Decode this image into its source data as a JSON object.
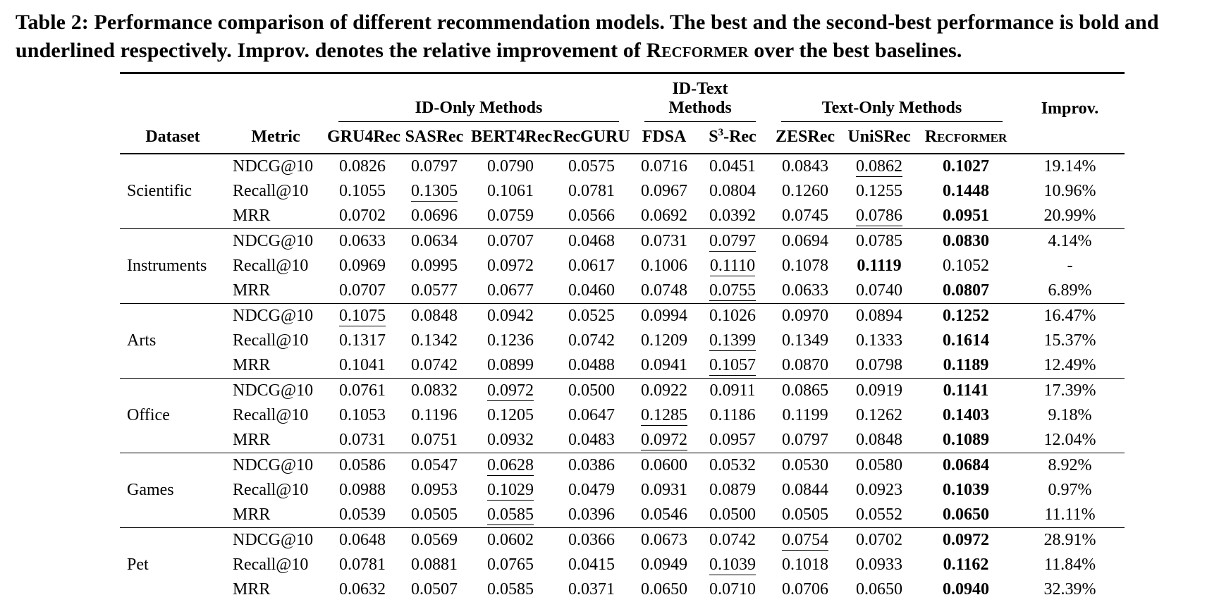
{
  "colors": {
    "text": "#000000",
    "background": "#ffffff",
    "rule": "#000000"
  },
  "caption": {
    "prefix": "Table 2: Performance comparison of different recommendation models. The best and the second-best performance is bold and underlined respectively. Improv. denotes the relative improvement of ",
    "recformer": "Recformer",
    "suffix": " over the best baselines."
  },
  "table": {
    "group_headers": [
      "ID-Only Methods",
      "ID-Text Methods",
      "Text-Only Methods"
    ],
    "improv_header": "Improv.",
    "dataset_header": "Dataset",
    "metric_header": "Metric",
    "models": [
      "GRU4Rec",
      "SASRec",
      "BERT4Rec",
      "RecGURU",
      "FDSA",
      "ZESRec",
      "UniSRec",
      "Recformer"
    ],
    "s3rec": {
      "pre": "S",
      "sup": "3",
      "post": "-Rec"
    },
    "body": [
      {
        "dataset": "Scientific",
        "rows": [
          {
            "metric": "NDCG@10",
            "cells": [
              "0.0826",
              "0.0797",
              "0.0790",
              "0.0575",
              "0.0716",
              "0.0451",
              "0.0843",
              {
                "v": "0.0862",
                "s": "ul"
              },
              {
                "v": "0.1027",
                "s": "b"
              },
              "19.14%"
            ]
          },
          {
            "metric": "Recall@10",
            "cells": [
              "0.1055",
              {
                "v": "0.1305",
                "s": "ul"
              },
              "0.1061",
              "0.0781",
              "0.0967",
              "0.0804",
              "0.1260",
              "0.1255",
              {
                "v": "0.1448",
                "s": "b"
              },
              "10.96%"
            ]
          },
          {
            "metric": "MRR",
            "cells": [
              "0.0702",
              "0.0696",
              "0.0759",
              "0.0566",
              "0.0692",
              "0.0392",
              "0.0745",
              {
                "v": "0.0786",
                "s": "ul"
              },
              {
                "v": "0.0951",
                "s": "b"
              },
              "20.99%"
            ]
          }
        ]
      },
      {
        "dataset": "Instruments",
        "rows": [
          {
            "metric": "NDCG@10",
            "cells": [
              "0.0633",
              "0.0634",
              "0.0707",
              "0.0468",
              "0.0731",
              {
                "v": "0.0797",
                "s": "ul"
              },
              "0.0694",
              "0.0785",
              {
                "v": "0.0830",
                "s": "b"
              },
              "4.14%"
            ]
          },
          {
            "metric": "Recall@10",
            "cells": [
              "0.0969",
              "0.0995",
              "0.0972",
              "0.0617",
              "0.1006",
              {
                "v": "0.1110",
                "s": "ul"
              },
              "0.1078",
              {
                "v": "0.1119",
                "s": "b"
              },
              "0.1052",
              "-"
            ]
          },
          {
            "metric": "MRR",
            "cells": [
              "0.0707",
              "0.0577",
              "0.0677",
              "0.0460",
              "0.0748",
              {
                "v": "0.0755",
                "s": "ul"
              },
              "0.0633",
              "0.0740",
              {
                "v": "0.0807",
                "s": "b"
              },
              "6.89%"
            ]
          }
        ]
      },
      {
        "dataset": "Arts",
        "rows": [
          {
            "metric": "NDCG@10",
            "cells": [
              {
                "v": "0.1075",
                "s": "ul"
              },
              "0.0848",
              "0.0942",
              "0.0525",
              "0.0994",
              "0.1026",
              "0.0970",
              "0.0894",
              {
                "v": "0.1252",
                "s": "b"
              },
              "16.47%"
            ]
          },
          {
            "metric": "Recall@10",
            "cells": [
              "0.1317",
              "0.1342",
              "0.1236",
              "0.0742",
              "0.1209",
              {
                "v": "0.1399",
                "s": "ul"
              },
              "0.1349",
              "0.1333",
              {
                "v": "0.1614",
                "s": "b"
              },
              "15.37%"
            ]
          },
          {
            "metric": "MRR",
            "cells": [
              "0.1041",
              "0.0742",
              "0.0899",
              "0.0488",
              "0.0941",
              {
                "v": "0.1057",
                "s": "ul"
              },
              "0.0870",
              "0.0798",
              {
                "v": "0.1189",
                "s": "b"
              },
              "12.49%"
            ]
          }
        ]
      },
      {
        "dataset": "Office",
        "rows": [
          {
            "metric": "NDCG@10",
            "cells": [
              "0.0761",
              "0.0832",
              {
                "v": "0.0972",
                "s": "ul"
              },
              "0.0500",
              "0.0922",
              "0.0911",
              "0.0865",
              "0.0919",
              {
                "v": "0.1141",
                "s": "b"
              },
              "17.39%"
            ]
          },
          {
            "metric": "Recall@10",
            "cells": [
              "0.1053",
              "0.1196",
              "0.1205",
              "0.0647",
              {
                "v": "0.1285",
                "s": "ul"
              },
              "0.1186",
              "0.1199",
              "0.1262",
              {
                "v": "0.1403",
                "s": "b"
              },
              "9.18%"
            ]
          },
          {
            "metric": "MRR",
            "cells": [
              "0.0731",
              "0.0751",
              "0.0932",
              "0.0483",
              {
                "v": "0.0972",
                "s": "ul"
              },
              "0.0957",
              "0.0797",
              "0.0848",
              {
                "v": "0.1089",
                "s": "b"
              },
              "12.04%"
            ]
          }
        ]
      },
      {
        "dataset": "Games",
        "rows": [
          {
            "metric": "NDCG@10",
            "cells": [
              "0.0586",
              "0.0547",
              {
                "v": "0.0628",
                "s": "ul"
              },
              "0.0386",
              "0.0600",
              "0.0532",
              "0.0530",
              "0.0580",
              {
                "v": "0.0684",
                "s": "b"
              },
              "8.92%"
            ]
          },
          {
            "metric": "Recall@10",
            "cells": [
              "0.0988",
              "0.0953",
              {
                "v": "0.1029",
                "s": "ul"
              },
              "0.0479",
              "0.0931",
              "0.0879",
              "0.0844",
              "0.0923",
              {
                "v": "0.1039",
                "s": "b"
              },
              "0.97%"
            ]
          },
          {
            "metric": "MRR",
            "cells": [
              "0.0539",
              "0.0505",
              {
                "v": "0.0585",
                "s": "ul"
              },
              "0.0396",
              "0.0546",
              "0.0500",
              "0.0505",
              "0.0552",
              {
                "v": "0.0650",
                "s": "b"
              },
              "11.11%"
            ]
          }
        ]
      },
      {
        "dataset": "Pet",
        "rows": [
          {
            "metric": "NDCG@10",
            "cells": [
              "0.0648",
              "0.0569",
              "0.0602",
              "0.0366",
              "0.0673",
              "0.0742",
              {
                "v": "0.0754",
                "s": "ul"
              },
              "0.0702",
              {
                "v": "0.0972",
                "s": "b"
              },
              "28.91%"
            ]
          },
          {
            "metric": "Recall@10",
            "cells": [
              "0.0781",
              "0.0881",
              "0.0765",
              "0.0415",
              "0.0949",
              {
                "v": "0.1039",
                "s": "ul"
              },
              "0.1018",
              "0.0933",
              {
                "v": "0.1162",
                "s": "b"
              },
              "11.84%"
            ]
          },
          {
            "metric": "MRR",
            "cells": [
              "0.0632",
              "0.0507",
              "0.0585",
              "0.0371",
              "0.0650",
              {
                "v": "0.0710",
                "s": "ul"
              },
              "0.0706",
              "0.0650",
              {
                "v": "0.0940",
                "s": "b"
              },
              "32.39%"
            ]
          }
        ]
      }
    ]
  }
}
